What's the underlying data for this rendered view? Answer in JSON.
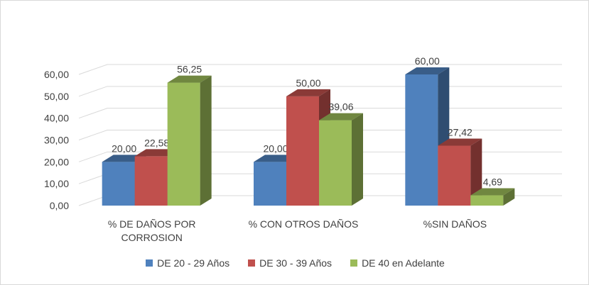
{
  "chart_data": {
    "type": "bar",
    "title": "",
    "xlabel": "",
    "ylabel": "",
    "ylim": [
      0,
      60
    ],
    "y_ticks": [
      "0,00",
      "10,00",
      "20,00",
      "30,00",
      "40,00",
      "50,00",
      "60,00"
    ],
    "categories": [
      [
        "% DE DAÑOS POR",
        "CORROSION"
      ],
      [
        "% CON OTROS DAÑOS"
      ],
      [
        "%SIN DAÑOS"
      ]
    ],
    "series": [
      {
        "name": "DE 20 - 29 Años",
        "color": "#4f81bd",
        "values": [
          20.0,
          20.0,
          60.0
        ],
        "labels": [
          "20,00",
          "20,00",
          "60,00"
        ]
      },
      {
        "name": "DE 30 - 39 Años",
        "color": "#c0504d",
        "values": [
          22.58,
          50.0,
          27.42
        ],
        "labels": [
          "22,58",
          "50,00",
          "27,42"
        ]
      },
      {
        "name": "DE 40 en Adelante",
        "color": "#9bbb59",
        "values": [
          56.25,
          39.06,
          4.69
        ],
        "labels": [
          "56,25",
          "39,06",
          "4,69"
        ]
      }
    ],
    "grid": true,
    "legend_position": "bottom",
    "style": "3d-clustered-column"
  }
}
